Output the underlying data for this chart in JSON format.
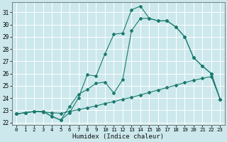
{
  "xlabel": "Humidex (Indice chaleur)",
  "bg_color": "#cce8ec",
  "grid_color": "#ffffff",
  "line_color": "#1a7a6e",
  "xlim": [
    -0.5,
    23.5
  ],
  "ylim": [
    21.8,
    31.8
  ],
  "yticks": [
    22,
    23,
    24,
    25,
    26,
    27,
    28,
    29,
    30,
    31
  ],
  "xticks": [
    0,
    1,
    2,
    3,
    4,
    5,
    6,
    7,
    8,
    9,
    10,
    11,
    12,
    13,
    14,
    15,
    16,
    17,
    18,
    19,
    20,
    21,
    22,
    23
  ],
  "curve1_x": [
    0,
    1,
    2,
    3,
    4,
    5,
    6,
    7,
    8,
    9,
    10,
    11,
    12,
    13,
    14,
    15,
    16,
    17,
    18,
    19,
    20,
    21,
    22,
    23
  ],
  "curve1_y": [
    22.7,
    22.8,
    22.9,
    22.85,
    22.8,
    22.75,
    22.9,
    23.05,
    23.2,
    23.35,
    23.55,
    23.7,
    23.9,
    24.05,
    24.25,
    24.45,
    24.65,
    24.85,
    25.05,
    25.25,
    25.45,
    25.6,
    25.75,
    23.9
  ],
  "curve2_x": [
    0,
    1,
    2,
    3,
    4,
    5,
    6,
    7,
    8,
    9,
    10,
    11,
    12,
    13,
    14,
    15,
    16,
    17,
    18,
    19,
    20,
    21,
    22,
    23
  ],
  "curve2_y": [
    22.7,
    22.8,
    22.9,
    22.9,
    22.5,
    22.2,
    22.8,
    24.0,
    25.9,
    25.8,
    27.6,
    29.2,
    29.3,
    31.2,
    31.5,
    30.5,
    30.3,
    30.3,
    29.8,
    29.0,
    27.3,
    26.6,
    26.0,
    23.9
  ],
  "curve3_x": [
    0,
    1,
    2,
    3,
    4,
    5,
    6,
    7,
    8,
    9,
    10,
    11,
    12,
    13,
    14,
    15,
    16,
    17,
    18,
    19,
    20,
    21,
    22,
    23
  ],
  "curve3_y": [
    22.7,
    22.8,
    22.9,
    22.9,
    22.5,
    22.2,
    23.3,
    24.3,
    24.7,
    25.2,
    25.3,
    24.4,
    25.5,
    29.5,
    30.5,
    30.5,
    30.3,
    30.3,
    29.8,
    29.0,
    27.3,
    26.6,
    26.0,
    23.9
  ]
}
